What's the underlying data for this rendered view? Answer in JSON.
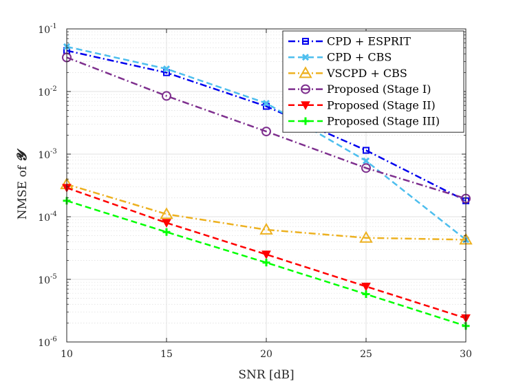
{
  "chart_data": {
    "type": "line",
    "title": "",
    "xlabel": "SNR [dB]",
    "ylabel_prefix": "NMSE of ",
    "ylabel_symbol": "𝓨",
    "yscale": "log",
    "xlim": [
      10,
      30
    ],
    "ylim": [
      1e-06,
      0.1
    ],
    "grid": true,
    "legend_position": "top-right",
    "x": [
      10,
      15,
      20,
      25,
      30
    ],
    "x_ticks": [
      10,
      15,
      20,
      25,
      30
    ],
    "y_ticks": [
      {
        "value": 1e-06,
        "mant": "10",
        "exp": "-6"
      },
      {
        "value": 1e-05,
        "mant": "10",
        "exp": "-5"
      },
      {
        "value": 0.0001,
        "mant": "10",
        "exp": "-4"
      },
      {
        "value": 0.001,
        "mant": "10",
        "exp": "-3"
      },
      {
        "value": 0.01,
        "mant": "10",
        "exp": "-2"
      },
      {
        "value": 0.1,
        "mant": "10",
        "exp": "-1"
      }
    ],
    "series": [
      {
        "name": "CPD + ESPRIT",
        "color": "#0000ee",
        "dash": "dashdot",
        "marker": "square",
        "values": [
          0.045,
          0.02,
          0.0058,
          0.00115,
          0.00018
        ]
      },
      {
        "name": "CPD + CBS",
        "color": "#4dbeee",
        "dash": "dash",
        "marker": "x",
        "values": [
          0.052,
          0.023,
          0.0065,
          0.00078,
          4.3e-05
        ]
      },
      {
        "name": "VSCPD + CBS",
        "color": "#edb120",
        "dash": "dashdot",
        "marker": "triangle-up",
        "values": [
          0.00033,
          0.00011,
          6.2e-05,
          4.6e-05,
          4.3e-05
        ]
      },
      {
        "name": "Proposed (Stage I)",
        "color": "#7e2f8e",
        "dash": "dashdot",
        "marker": "circle",
        "values": [
          0.035,
          0.0085,
          0.0023,
          0.0006,
          0.000195
        ]
      },
      {
        "name": "Proposed (Stage II)",
        "color": "#ff0000",
        "dash": "dash",
        "marker": "triangle-down",
        "values": [
          0.00029,
          8e-05,
          2.5e-05,
          7.7e-06,
          2.4e-06
        ]
      },
      {
        "name": "Proposed (Stage III)",
        "color": "#00ff00",
        "dash": "dash",
        "marker": "plus",
        "values": [
          0.00018,
          5.7e-05,
          1.85e-05,
          5.8e-06,
          1.8e-06
        ]
      }
    ]
  }
}
